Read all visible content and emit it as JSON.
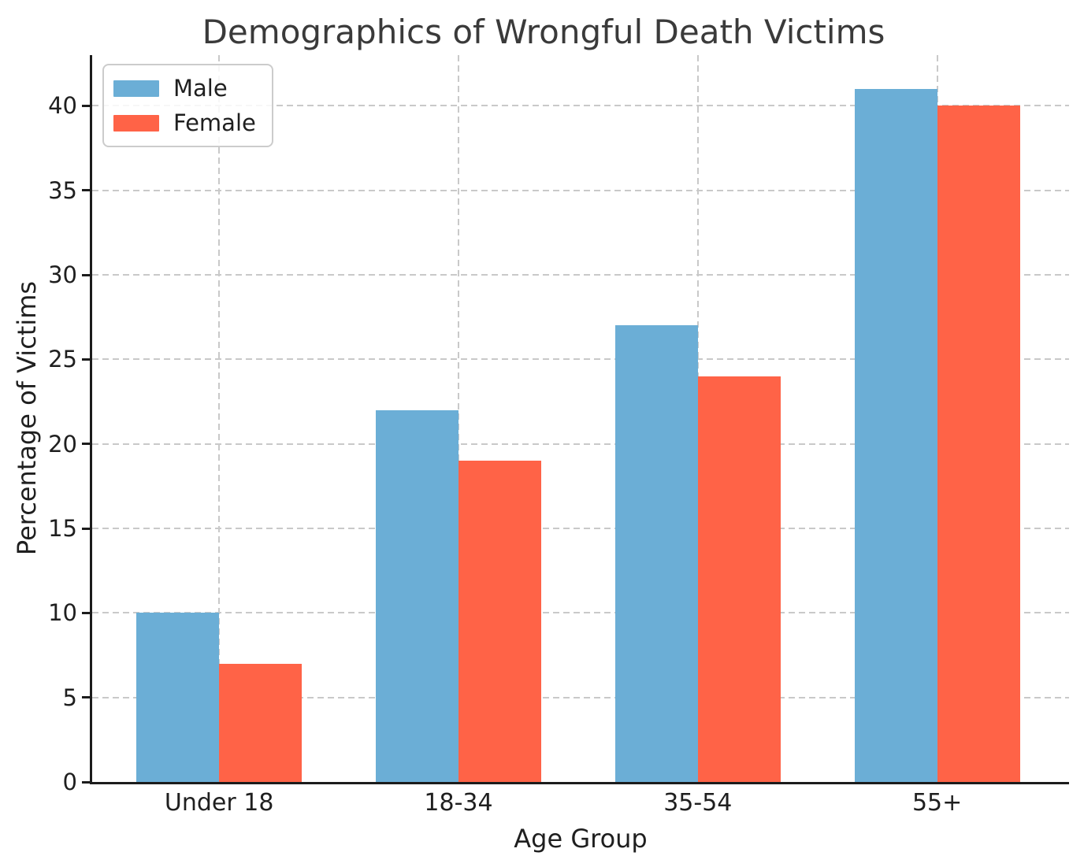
{
  "chart_data": {
    "type": "bar",
    "title": "Demographics of Wrongful Death Victims",
    "xlabel": "Age Group",
    "ylabel": "Percentage of Victims",
    "categories": [
      "Under 18",
      "18-34",
      "35-54",
      "55+"
    ],
    "series": [
      {
        "name": "Male",
        "color": "#6baed6",
        "values": [
          10,
          22,
          27,
          41
        ]
      },
      {
        "name": "Female",
        "color": "#ff6347",
        "values": [
          7,
          19,
          24,
          40
        ]
      }
    ],
    "yticks": [
      0,
      5,
      10,
      15,
      20,
      25,
      30,
      35,
      40
    ],
    "ylim": [
      0,
      43
    ],
    "grid": true,
    "grid_style": "dashed",
    "legend": {
      "position": "upper left"
    },
    "colors": {
      "background": "#ffffff",
      "grid": "#c9c9c9",
      "spine": "#1c1c1c",
      "title_text": "#3a3a3a",
      "tick_text": "#1f1f1f"
    }
  }
}
